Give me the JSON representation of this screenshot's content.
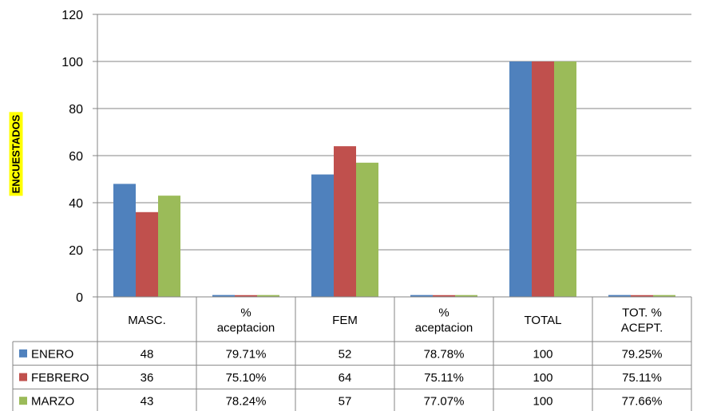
{
  "chart_data": {
    "type": "bar",
    "title": "",
    "ylabel": "ENCUESTADOS",
    "xlabel": "",
    "ylim": [
      0,
      120
    ],
    "yticks": [
      0,
      20,
      40,
      60,
      80,
      100,
      120
    ],
    "grid": true,
    "legend_placement": "left of data table",
    "categories": [
      "MASC.",
      "% aceptacion",
      "FEM",
      "% aceptacion",
      "TOTAL",
      "TOT. % ACEPT."
    ],
    "category_lines": [
      [
        "MASC."
      ],
      [
        "%",
        "aceptacion"
      ],
      [
        "FEM"
      ],
      [
        "%",
        "aceptacion"
      ],
      [
        "TOTAL"
      ],
      [
        "TOT. %",
        "ACEPT."
      ]
    ],
    "series": [
      {
        "name": "ENERO",
        "color": "#4F81BD",
        "values": [
          48,
          0.7971,
          52,
          0.7878,
          100,
          0.7925
        ],
        "labels": [
          "48",
          "79.71%",
          "52",
          "78.78%",
          "100",
          "79.25%"
        ]
      },
      {
        "name": "FEBRERO",
        "color": "#C0504D",
        "values": [
          36,
          0.751,
          64,
          0.7511,
          100,
          0.7511
        ],
        "labels": [
          "36",
          "75.10%",
          "64",
          "75.11%",
          "100",
          "75.11%"
        ]
      },
      {
        "name": "MARZO",
        "color": "#9BBB59",
        "values": [
          43,
          0.7824,
          57,
          0.7707,
          100,
          0.7766
        ],
        "labels": [
          "43",
          "78.24%",
          "57",
          "77.07%",
          "100",
          "77.66%"
        ]
      }
    ]
  }
}
